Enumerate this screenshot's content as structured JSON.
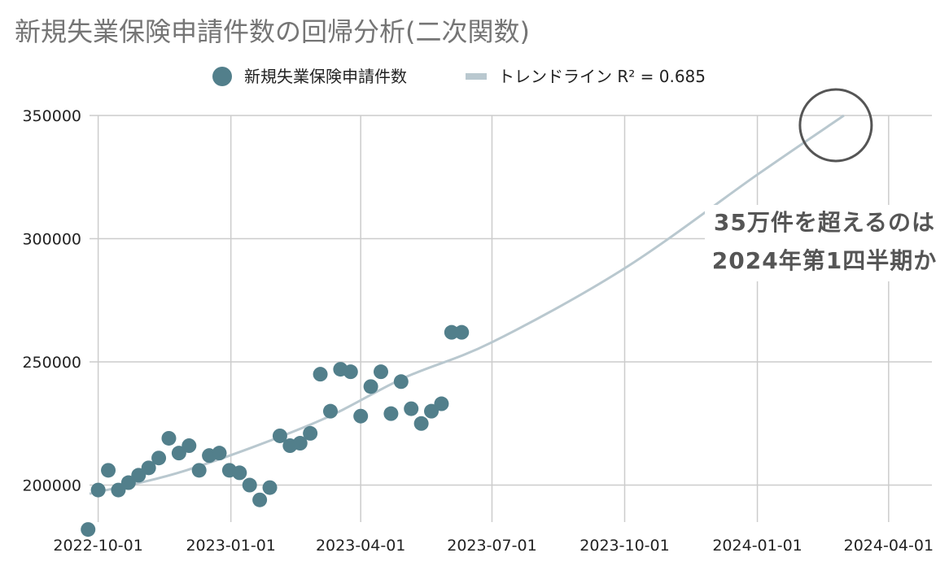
{
  "chart_data": {
    "type": "scatter",
    "title": "新規失業保険申請件数の回帰分析(二次関数)",
    "xlabel": "",
    "ylabel": "",
    "xlim": [
      "2022-09-25",
      "2024-05-01"
    ],
    "ylim": [
      185000,
      350000
    ],
    "x_ticks": [
      "2022-10-01",
      "2023-01-01",
      "2023-04-01",
      "2023-07-01",
      "2023-10-01",
      "2024-01-01",
      "2024-04-01"
    ],
    "y_ticks": [
      200000,
      250000,
      300000,
      350000
    ],
    "grid": true,
    "legend_position": "top",
    "series": [
      {
        "name": "新規失業保険申請件数",
        "kind": "scatter",
        "color": "#527f8b",
        "x": [
          "2022-09-24",
          "2022-10-01",
          "2022-10-08",
          "2022-10-15",
          "2022-10-22",
          "2022-10-29",
          "2022-11-05",
          "2022-11-12",
          "2022-11-19",
          "2022-11-26",
          "2022-12-03",
          "2022-12-10",
          "2022-12-17",
          "2022-12-24",
          "2022-12-31",
          "2023-01-07",
          "2023-01-14",
          "2023-01-21",
          "2023-01-28",
          "2023-02-04",
          "2023-02-11",
          "2023-02-18",
          "2023-02-25",
          "2023-03-04",
          "2023-03-11",
          "2023-03-18",
          "2023-03-25",
          "2023-04-01",
          "2023-04-08",
          "2023-04-15",
          "2023-04-22",
          "2023-04-29",
          "2023-05-06",
          "2023-05-13",
          "2023-05-20",
          "2023-05-27",
          "2023-06-03",
          "2023-06-10"
        ],
        "y": [
          182000,
          198000,
          206000,
          198000,
          201000,
          204000,
          207000,
          211000,
          219000,
          213000,
          216000,
          206000,
          212000,
          213000,
          206000,
          205000,
          200000,
          194000,
          199000,
          220000,
          216000,
          217000,
          221000,
          245000,
          230000,
          247000,
          246000,
          228000,
          240000,
          246000,
          229000,
          242000,
          231000,
          225000,
          230000,
          233000,
          262000,
          262000
        ]
      },
      {
        "name": "トレンドライン R² = 0.685",
        "kind": "trendline",
        "color": "#b9c8cf",
        "x": [
          "2022-09-25",
          "2022-12-01",
          "2023-03-01",
          "2023-05-01",
          "2023-07-01",
          "2023-10-01",
          "2024-01-01",
          "2024-03-01"
        ],
        "y": [
          196500,
          206000,
          225500,
          243500,
          258000,
          288000,
          326000,
          350000
        ]
      }
    ],
    "annotations": [
      {
        "type": "circle",
        "x": "2024-03-01",
        "y": 350000
      },
      {
        "type": "text",
        "lines": [
          "35万件を超えるのは",
          "2024年第1四半期か"
        ]
      }
    ]
  }
}
